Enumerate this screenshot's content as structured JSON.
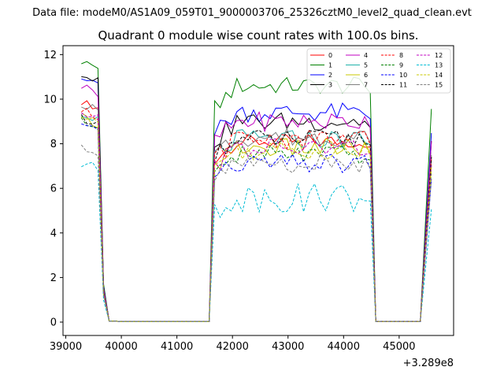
{
  "chart_data": {
    "type": "line",
    "suptitle": "Data file: modeM0/AS1A09_059T01_9000003706_25326cztM0_level2_quad_clean.evt",
    "title": "Quadrant 0 module wise count rates with 100.0s bins.",
    "xlabel": "",
    "ylabel": "",
    "x_offset_label": "+3.289e8",
    "xlim": [
      38950,
      45980
    ],
    "ylim": [
      -0.6,
      12.4
    ],
    "xticks": [
      39000,
      40000,
      41000,
      42000,
      43000,
      44000,
      45000
    ],
    "xtick_labels": [
      "39000",
      "40000",
      "41000",
      "42000",
      "43000",
      "44000",
      "45000"
    ],
    "yticks": [
      0,
      2,
      4,
      6,
      8,
      10,
      12
    ],
    "ytick_labels": [
      "0",
      "2",
      "4",
      "6",
      "8",
      "10",
      "12"
    ],
    "grid": false,
    "legend_position": "top-right",
    "legend_columns": 4,
    "segments": [
      {
        "x_start": 39280,
        "x_end": 39880
      },
      {
        "x_start": 41580,
        "x_end": 44580
      },
      {
        "x_start": 45380,
        "x_end": 45580
      }
    ],
    "series": [
      {
        "name": "0",
        "color": "#ff0000",
        "dash": "solid",
        "level": 9.8,
        "amp": 0.15,
        "peak_start": 9.9,
        "peak_mid": 8.1
      },
      {
        "name": "1",
        "color": "#008000",
        "dash": "solid",
        "level": 11.4,
        "amp": 0.18,
        "peak_start": 11.7,
        "peak_mid": 10.6
      },
      {
        "name": "2",
        "color": "#0000ff",
        "dash": "solid",
        "level": 10.7,
        "amp": 0.2,
        "peak_start": 11.1,
        "peak_mid": 9.4
      },
      {
        "name": "3",
        "color": "#000000",
        "dash": "solid",
        "level": 10.4,
        "amp": 0.2,
        "peak_start": 11.1,
        "peak_mid": 9.0
      },
      {
        "name": "4",
        "color": "#c000c0",
        "dash": "solid",
        "level": 10.0,
        "amp": 0.2,
        "peak_start": 10.6,
        "peak_mid": 9.0
      },
      {
        "name": "5",
        "color": "#20b2aa",
        "dash": "solid",
        "level": 9.0,
        "amp": 0.2,
        "peak_start": 9.4,
        "peak_mid": 8.2
      },
      {
        "name": "6",
        "color": "#c8c800",
        "dash": "solid",
        "level": 8.6,
        "amp": 0.2,
        "peak_start": 9.2,
        "peak_mid": 7.8
      },
      {
        "name": "7",
        "color": "#808080",
        "dash": "solid",
        "level": 9.6,
        "amp": 0.2,
        "peak_start": 9.8,
        "peak_mid": 8.3
      },
      {
        "name": "8",
        "color": "#ff0000",
        "dash": "dashed",
        "level": 9.3,
        "amp": 0.2,
        "peak_start": 9.5,
        "peak_mid": 8.2
      },
      {
        "name": "9",
        "color": "#008000",
        "dash": "dashed",
        "level": 8.7,
        "amp": 0.2,
        "peak_start": 9.0,
        "peak_mid": 7.5
      },
      {
        "name": "10",
        "color": "#0000ff",
        "dash": "dashed",
        "level": 8.1,
        "amp": 0.2,
        "peak_start": 8.8,
        "peak_mid": 7.1
      },
      {
        "name": "11",
        "color": "#000000",
        "dash": "dashed",
        "level": 8.8,
        "amp": 0.2,
        "peak_start": 9.2,
        "peak_mid": 8.2
      },
      {
        "name": "12",
        "color": "#c000c0",
        "dash": "dashed",
        "level": 9.0,
        "amp": 0.2,
        "peak_start": 9.4,
        "peak_mid": 7.8
      },
      {
        "name": "13",
        "color": "#00bcd4",
        "dash": "dashed",
        "level": 6.6,
        "amp": 0.3,
        "peak_start": 7.1,
        "peak_mid": 5.6
      },
      {
        "name": "14",
        "color": "#c8c800",
        "dash": "dashed",
        "level": 8.4,
        "amp": 0.2,
        "peak_start": 9.2,
        "peak_mid": 7.7
      },
      {
        "name": "15",
        "color": "#808080",
        "dash": "dashed",
        "level": 8.2,
        "amp": 0.2,
        "peak_start": 7.9,
        "peak_mid": 7.1
      }
    ]
  }
}
